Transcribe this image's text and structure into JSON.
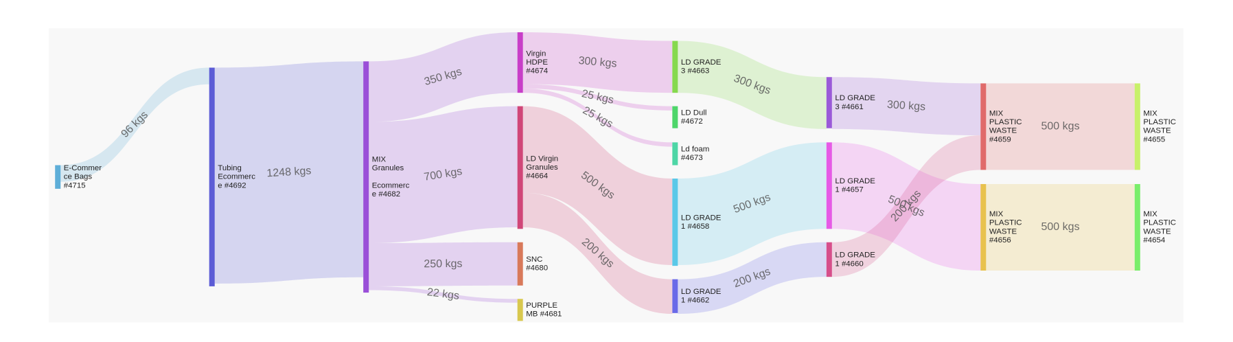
{
  "chart_data": {
    "type": "sankey",
    "nodes": [
      {
        "label": [
          [
            "E-Commer",
            "ce Bags",
            "#4715"
          ]
        ],
        "color": "#5eaed8"
      },
      {
        "label": [
          [
            "Tubing",
            "Ecommerc",
            "e #4692"
          ]
        ],
        "color": "#5c5cd6"
      },
      {
        "label": [
          [
            "MIX",
            "Granules"
          ],
          [
            "Ecommerc",
            "e #4682"
          ]
        ],
        "color": "#9a4fd8"
      },
      {
        "label": [
          [
            "Virgin",
            "HDPE",
            "#4674"
          ]
        ],
        "color": "#c83ec8"
      },
      {
        "label": [
          [
            "LD Virgin",
            "Granules",
            "#4664"
          ]
        ],
        "color": "#d04678"
      },
      {
        "label": [
          [
            "SNC",
            "#4680"
          ]
        ],
        "color": "#d8795a"
      },
      {
        "label": [
          [
            "PURPLE",
            "MB #4681"
          ]
        ],
        "color": "#d8c84e"
      },
      {
        "label": [
          [
            "LD GRADE",
            "3 #4663"
          ]
        ],
        "color": "#86d94e"
      },
      {
        "label": [
          [
            "LD Dull",
            "#4672"
          ]
        ],
        "color": "#4ed66a"
      },
      {
        "label": [
          [
            "Ld foam",
            "#4673"
          ]
        ],
        "color": "#4ed6a6"
      },
      {
        "label": [
          [
            "LD GRADE",
            "1 #4658"
          ]
        ],
        "color": "#5ac8e8"
      },
      {
        "label": [
          [
            "LD GRADE",
            "1 #4662"
          ]
        ],
        "color": "#6a6ae8"
      },
      {
        "label": [
          [
            "LD GRADE",
            "3 #4661"
          ]
        ],
        "color": "#9a5ad8"
      },
      {
        "label": [
          [
            "LD GRADE",
            "1 #4657"
          ]
        ],
        "color": "#e65ae6"
      },
      {
        "label": [
          [
            "LD GRADE",
            "1 #4660"
          ]
        ],
        "color": "#d64f8a"
      },
      {
        "label": [
          [
            "MIX",
            "PLASTIC",
            "WASTE",
            "#4659"
          ]
        ],
        "color": "#e06a6a"
      },
      {
        "label": [
          [
            "MIX",
            "PLASTIC",
            "WASTE",
            "#4656"
          ]
        ],
        "color": "#e8c24e"
      },
      {
        "label": [
          [
            "MIX",
            "PLASTIC",
            "WASTE",
            "#4655"
          ]
        ],
        "color": "#c8f06a"
      },
      {
        "label": [
          [
            "MIX",
            "PLASTIC",
            "WASTE",
            "#4654"
          ]
        ],
        "color": "#7aee6a"
      }
    ],
    "links": [
      {
        "source": 0,
        "target": 1,
        "value": 96,
        "value_label": "96 kgs"
      },
      {
        "source": 1,
        "target": 2,
        "value": 1248,
        "value_label": "1248 kgs"
      },
      {
        "source": 2,
        "target": 3,
        "value": 350,
        "value_label": "350 kgs"
      },
      {
        "source": 2,
        "target": 4,
        "value": 700,
        "value_label": "700 kgs"
      },
      {
        "source": 2,
        "target": 5,
        "value": 250,
        "value_label": "250 kgs"
      },
      {
        "source": 2,
        "target": 6,
        "value": 22,
        "value_label": "22 kgs"
      },
      {
        "source": 3,
        "target": 7,
        "value": 300,
        "value_label": "300 kgs"
      },
      {
        "source": 3,
        "target": 8,
        "value": 25,
        "value_label": "25 kgs"
      },
      {
        "source": 3,
        "target": 9,
        "value": 25,
        "value_label": "25 kgs"
      },
      {
        "source": 4,
        "target": 10,
        "value": 500,
        "value_label": "500 kgs"
      },
      {
        "source": 4,
        "target": 11,
        "value": 200,
        "value_label": "200 kgs"
      },
      {
        "source": 7,
        "target": 12,
        "value": 300,
        "value_label": "300 kgs"
      },
      {
        "source": 10,
        "target": 13,
        "value": 500,
        "value_label": "500 kgs"
      },
      {
        "source": 11,
        "target": 14,
        "value": 200,
        "value_label": "200 kgs"
      },
      {
        "source": 12,
        "target": 15,
        "value": 300,
        "value_label": "300 kgs"
      },
      {
        "source": 13,
        "target": 16,
        "value": 500,
        "value_label": "500 kgs"
      },
      {
        "source": 14,
        "target": 15,
        "value": 200,
        "value_label": "200 kgs"
      },
      {
        "source": 15,
        "target": 17,
        "value": 500,
        "value_label": "500 kgs"
      },
      {
        "source": 16,
        "target": 18,
        "value": 500,
        "value_label": "500 kgs"
      }
    ]
  }
}
